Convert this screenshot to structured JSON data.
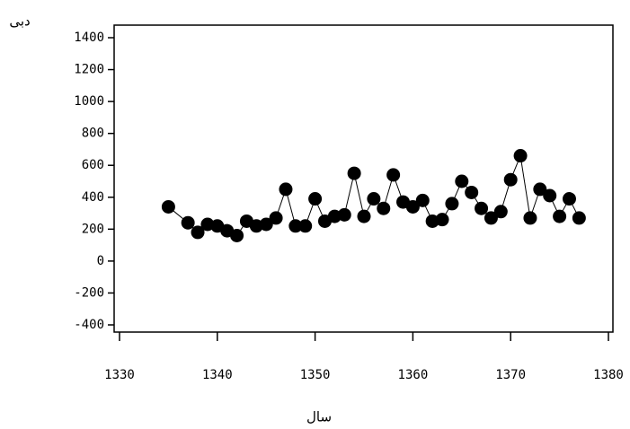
{
  "chart_data": {
    "type": "line",
    "y_label": "دبی",
    "x_label": "سال",
    "x": [
      1335,
      1337,
      1338,
      1339,
      1340,
      1341,
      1342,
      1343,
      1344,
      1345,
      1346,
      1347,
      1348,
      1349,
      1350,
      1351,
      1352,
      1353,
      1354,
      1355,
      1356,
      1357,
      1358,
      1359,
      1360,
      1361,
      1362,
      1363,
      1364,
      1365,
      1366,
      1367,
      1368,
      1369,
      1370,
      1371,
      1372,
      1373,
      1374,
      1375,
      1376,
      1377
    ],
    "values": [
      340,
      240,
      180,
      230,
      220,
      190,
      160,
      250,
      220,
      230,
      270,
      450,
      220,
      220,
      390,
      250,
      280,
      290,
      550,
      280,
      390,
      330,
      540,
      370,
      340,
      380,
      250,
      260,
      360,
      500,
      430,
      330,
      270,
      310,
      510,
      660,
      270,
      450,
      410,
      280,
      390,
      270
    ],
    "color": "#000000",
    "xlim": [
      1330,
      1380
    ],
    "xticks": [
      1330,
      1340,
      1350,
      1360,
      1370,
      1380
    ],
    "ylim": [
      -400,
      1400
    ],
    "yticks": [
      -400,
      -200,
      0,
      200,
      400,
      600,
      800,
      1000,
      1200,
      1400
    ],
    "grid": false
  }
}
